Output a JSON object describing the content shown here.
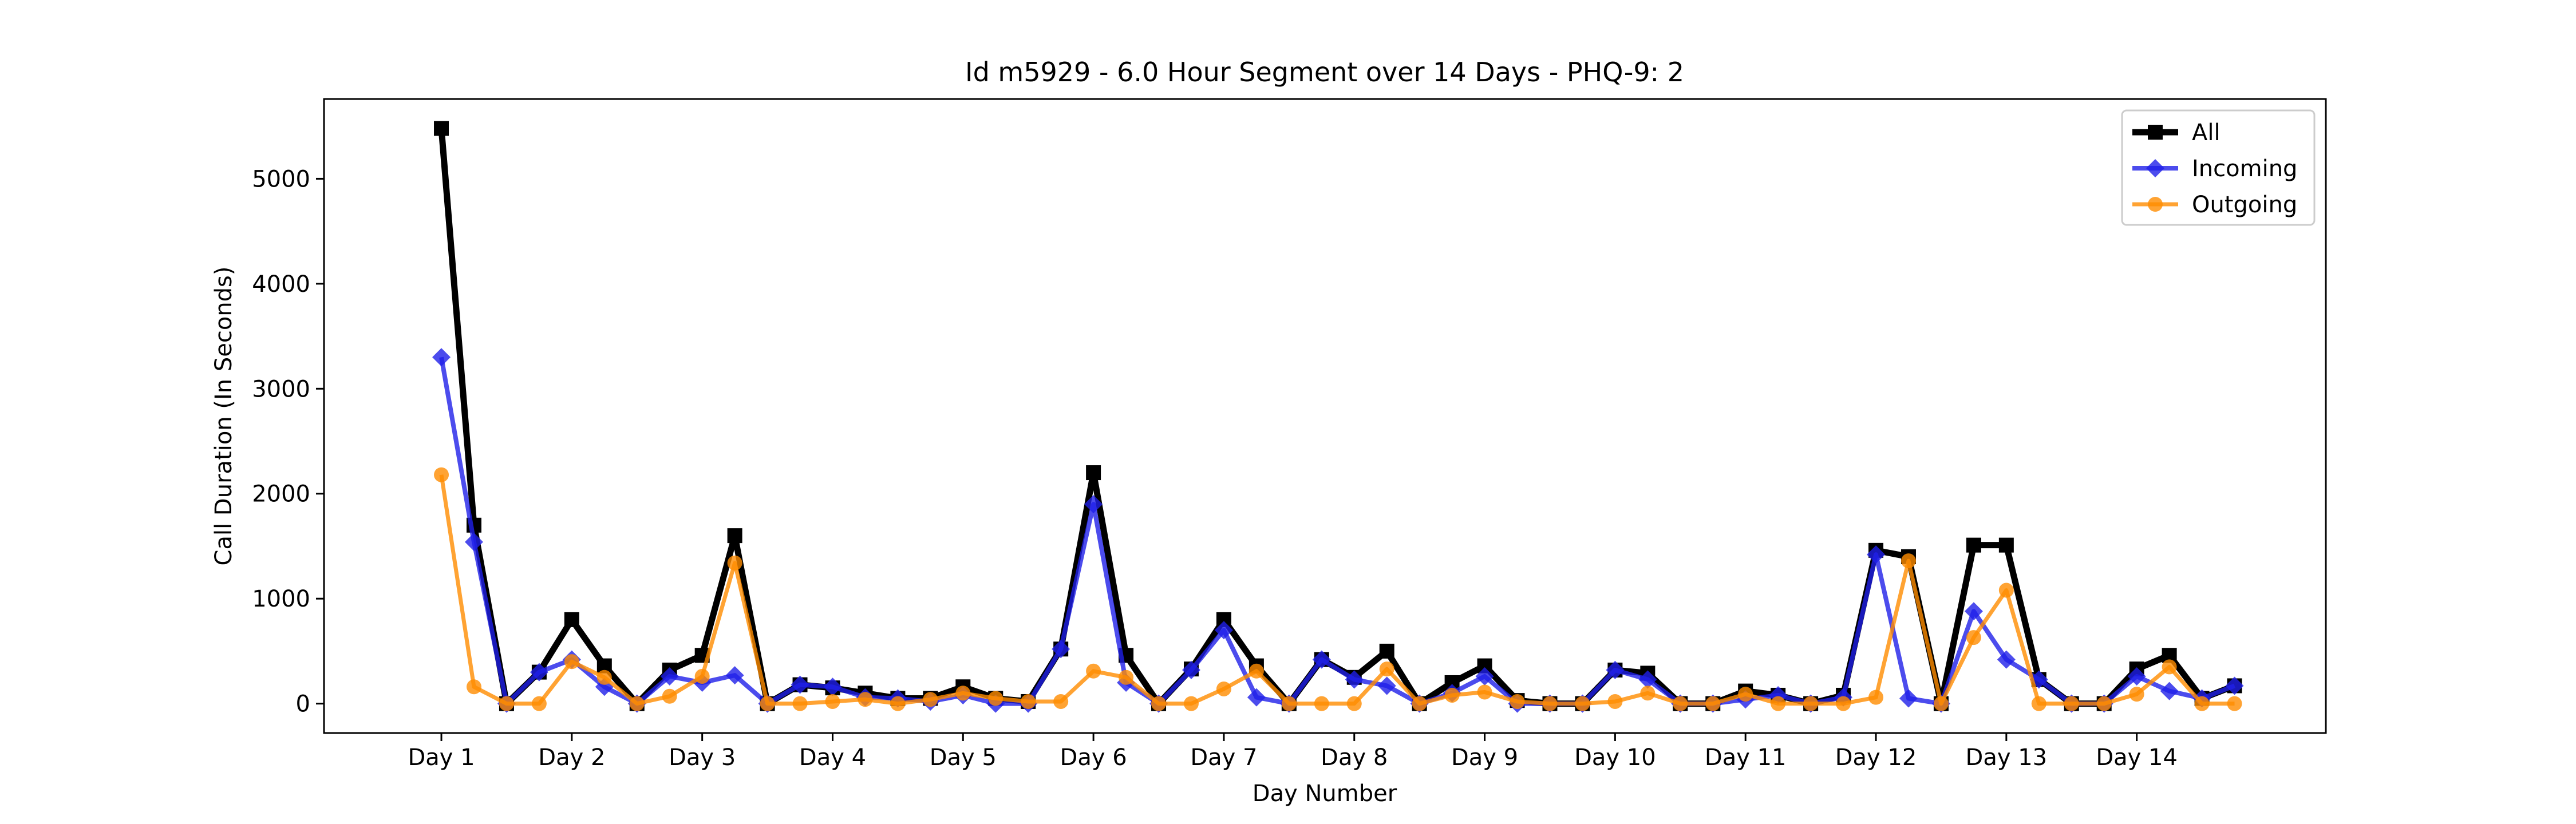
{
  "chart_data": {
    "type": "line",
    "title": "Id m5929 - 6.0 Hour Segment over 14 Days - PHQ-9: 2",
    "xlabel": "Day Number",
    "ylabel": "Call Duration (In Seconds)",
    "xticks": [
      "Day 1",
      "Day 2",
      "Day 3",
      "Day 4",
      "Day 5",
      "Day 6",
      "Day 7",
      "Day 8",
      "Day 9",
      "Day 10",
      "Day 11",
      "Day 12",
      "Day 13",
      "Day 14"
    ],
    "yticks": [
      0,
      1000,
      2000,
      3000,
      4000,
      5000
    ],
    "ylim": [
      -280,
      5760
    ],
    "xlim": [
      -0.9,
      14.45
    ],
    "legend_position": "top-right",
    "x": [
      0,
      0.25,
      0.5,
      0.75,
      1,
      1.25,
      1.5,
      1.75,
      2,
      2.25,
      2.5,
      2.75,
      3,
      3.25,
      3.5,
      3.75,
      4,
      4.25,
      4.5,
      4.75,
      5,
      5.25,
      5.5,
      5.75,
      6,
      6.25,
      6.5,
      6.75,
      7,
      7.25,
      7.5,
      7.75,
      8,
      8.25,
      8.5,
      8.75,
      9,
      9.25,
      9.5,
      9.75,
      10,
      10.25,
      10.5,
      10.75,
      11,
      11.25,
      11.5,
      11.75,
      12,
      12.25,
      12.5,
      12.75,
      13,
      13.25,
      13.5,
      13.75
    ],
    "series": [
      {
        "name": "All",
        "color": "#000000",
        "marker": "square",
        "values": [
          5480,
          1700,
          0,
          300,
          800,
          360,
          0,
          320,
          460,
          1600,
          0,
          180,
          150,
          100,
          50,
          50,
          160,
          50,
          20,
          520,
          2200,
          460,
          0,
          330,
          800,
          360,
          0,
          420,
          250,
          500,
          0,
          200,
          360,
          30,
          0,
          0,
          320,
          290,
          0,
          0,
          120,
          80,
          0,
          80,
          1460,
          1400,
          0,
          1510,
          1510,
          230,
          0,
          0,
          330,
          460,
          50,
          170
        ]
      },
      {
        "name": "Incoming",
        "color": "#1f1fe8",
        "marker": "diamond",
        "values": [
          3300,
          1540,
          0,
          300,
          420,
          160,
          0,
          260,
          200,
          270,
          0,
          180,
          160,
          60,
          50,
          20,
          80,
          0,
          0,
          520,
          1900,
          200,
          0,
          320,
          700,
          60,
          0,
          420,
          230,
          170,
          0,
          100,
          260,
          0,
          0,
          0,
          320,
          230,
          0,
          0,
          40,
          80,
          0,
          60,
          1420,
          50,
          0,
          880,
          420,
          230,
          0,
          0,
          260,
          120,
          50,
          170
        ]
      },
      {
        "name": "Outgoing",
        "color": "#ff8c00",
        "marker": "circle",
        "values": [
          2180,
          160,
          0,
          0,
          400,
          250,
          0,
          70,
          260,
          1340,
          0,
          0,
          20,
          40,
          0,
          40,
          100,
          50,
          20,
          20,
          310,
          250,
          0,
          0,
          140,
          310,
          0,
          0,
          0,
          330,
          0,
          80,
          110,
          20,
          0,
          0,
          20,
          100,
          0,
          0,
          90,
          0,
          0,
          0,
          60,
          1360,
          0,
          630,
          1080,
          0,
          0,
          0,
          90,
          350,
          0,
          0
        ]
      }
    ]
  }
}
